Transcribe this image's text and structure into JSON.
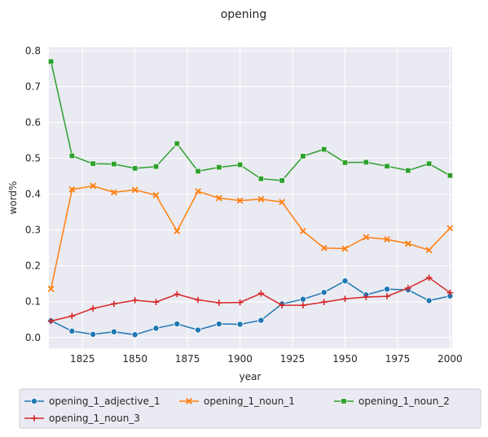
{
  "chart_data": {
    "type": "line",
    "title": "opening",
    "xlabel": "year",
    "ylabel": "word%",
    "xlim": [
      1809,
      2001
    ],
    "ylim": [
      -0.03,
      0.81
    ],
    "xticks": [
      1825,
      1850,
      1875,
      1900,
      1925,
      1950,
      1975,
      2000
    ],
    "yticks": [
      0.0,
      0.1,
      0.2,
      0.3,
      0.4,
      0.5,
      0.6,
      0.7,
      0.8
    ],
    "grid": true,
    "legend_position": "bottom",
    "x": [
      1810,
      1820,
      1830,
      1840,
      1850,
      1860,
      1870,
      1880,
      1890,
      1900,
      1910,
      1920,
      1930,
      1940,
      1950,
      1960,
      1970,
      1980,
      1990,
      2000
    ],
    "series": [
      {
        "name": "opening_1_adjective_1",
        "color": "#1f77b4",
        "marker": "circle",
        "values": [
          0.047,
          0.018,
          0.009,
          0.016,
          0.008,
          0.026,
          0.038,
          0.021,
          0.038,
          0.037,
          0.048,
          0.094,
          0.107,
          0.126,
          0.158,
          0.119,
          0.135,
          0.133,
          0.103,
          0.116
        ]
      },
      {
        "name": "opening_1_noun_1",
        "color": "#ff7f0e",
        "marker": "x",
        "values": [
          0.136,
          0.413,
          0.423,
          0.405,
          0.412,
          0.397,
          0.297,
          0.408,
          0.389,
          0.382,
          0.386,
          0.378,
          0.297,
          0.25,
          0.248,
          0.28,
          0.274,
          0.262,
          0.244,
          0.305
        ]
      },
      {
        "name": "opening_1_noun_2",
        "color": "#2ca02c",
        "marker": "square",
        "values": [
          0.77,
          0.507,
          0.485,
          0.484,
          0.472,
          0.477,
          0.541,
          0.464,
          0.475,
          0.482,
          0.443,
          0.438,
          0.506,
          0.525,
          0.488,
          0.489,
          0.478,
          0.466,
          0.485,
          0.452
        ]
      },
      {
        "name": "opening_1_noun_3",
        "color": "#d62728",
        "marker": "plus",
        "values": [
          0.046,
          0.06,
          0.081,
          0.094,
          0.104,
          0.099,
          0.121,
          0.105,
          0.097,
          0.098,
          0.123,
          0.09,
          0.09,
          0.099,
          0.108,
          0.113,
          0.115,
          0.138,
          0.167,
          0.125
        ]
      }
    ]
  }
}
